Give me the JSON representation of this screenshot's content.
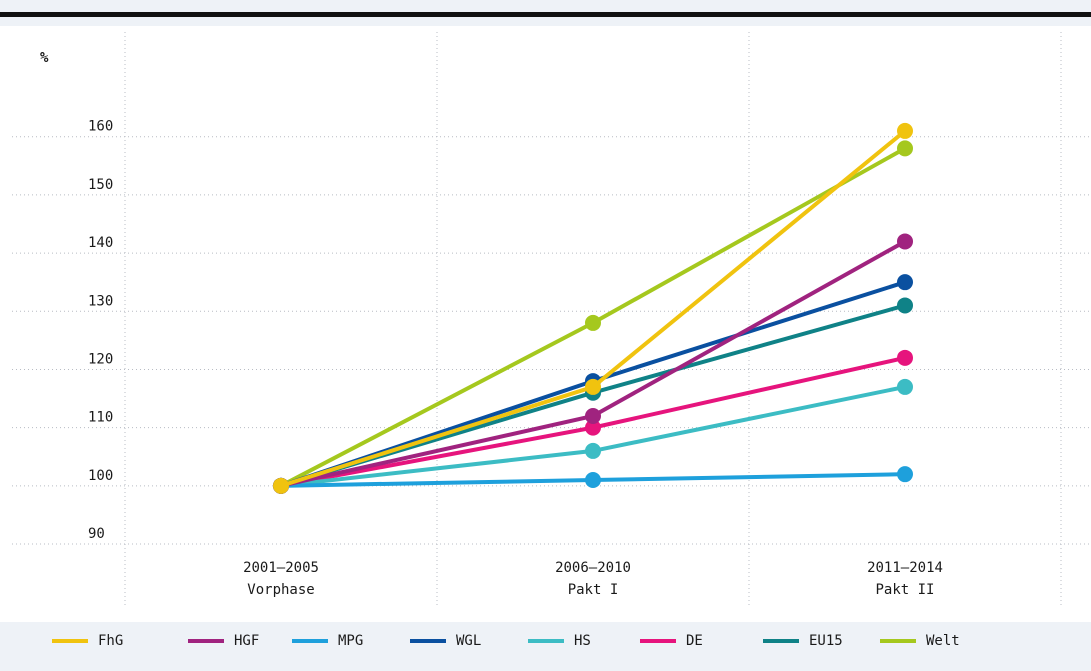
{
  "chart_data": {
    "type": "line",
    "y_label": "%",
    "categories": [
      "2001–2005\nVorphase",
      "2006–2010\nPakt I",
      "2011–2014\nPakt II"
    ],
    "series": [
      {
        "name": "FhG",
        "color": "#f0c30f",
        "values": [
          100,
          117,
          161
        ]
      },
      {
        "name": "HGF",
        "color": "#a0237f",
        "values": [
          100,
          112,
          142
        ]
      },
      {
        "name": "MPG",
        "color": "#1ea0dc",
        "values": [
          100,
          101,
          102
        ]
      },
      {
        "name": "WGL",
        "color": "#0a50a0",
        "values": [
          100,
          118,
          135
        ]
      },
      {
        "name": "HS",
        "color": "#3cbcc4",
        "values": [
          100,
          106,
          117
        ]
      },
      {
        "name": "DE",
        "color": "#e6147d",
        "values": [
          100,
          110,
          122
        ]
      },
      {
        "name": "EU15",
        "color": "#0f8287",
        "values": [
          100,
          116,
          131
        ]
      },
      {
        "name": "Welt",
        "color": "#a5c81e",
        "values": [
          100,
          128,
          158
        ]
      }
    ],
    "ylim": [
      79,
      178
    ],
    "yticks": [
      90,
      100,
      110,
      120,
      130,
      140,
      150,
      160
    ],
    "grid": true,
    "legend": "bottom"
  }
}
